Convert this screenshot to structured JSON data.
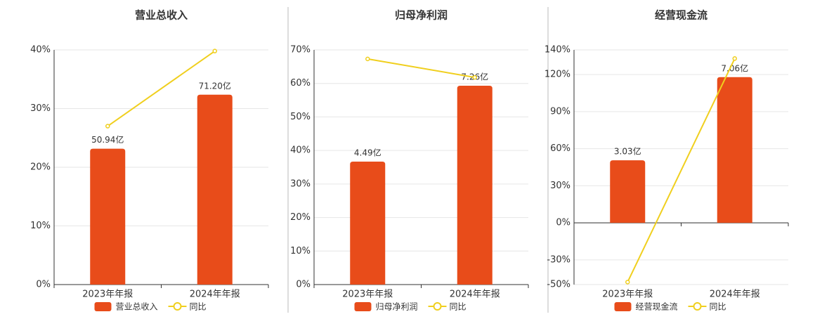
{
  "chart_data": [
    {
      "type": "bar-line",
      "title": "营业总收入",
      "categories": [
        "2023年年报",
        "2024年年报"
      ],
      "series": [
        {
          "name": "营业总收入",
          "color": "#e84c1a",
          "axis": "y2",
          "values": [
            50.94,
            71.2
          ],
          "value_labels": [
            "50.94亿",
            "71.20亿"
          ]
        },
        {
          "name": "同比",
          "color": "#f0cf1e",
          "values": [
            27,
            39.8
          ]
        }
      ],
      "ylim": [
        0,
        40
      ],
      "yticks": [
        {
          "value": 0,
          "label": "0%"
        },
        {
          "value": 10,
          "label": "10%"
        },
        {
          "value": 20,
          "label": "20%"
        },
        {
          "value": 30,
          "label": "30%"
        },
        {
          "value": 40,
          "label": "40%"
        }
      ],
      "y2lim": [
        0,
        88
      ],
      "grid": true
    },
    {
      "type": "bar-line",
      "title": "归母净利润",
      "categories": [
        "2023年年报",
        "2024年年报"
      ],
      "series": [
        {
          "name": "归母净利润",
          "color": "#e84c1a",
          "axis": "y2",
          "values": [
            4.49,
            7.26
          ],
          "value_labels": [
            "4.49亿",
            "7.26亿"
          ]
        },
        {
          "name": "同比",
          "color": "#f0cf1e",
          "values": [
            67.3,
            61.8
          ]
        }
      ],
      "ylim": [
        0,
        70
      ],
      "yticks": [
        {
          "value": 0,
          "label": "0%"
        },
        {
          "value": 10,
          "label": "10%"
        },
        {
          "value": 20,
          "label": "20%"
        },
        {
          "value": 30,
          "label": "30%"
        },
        {
          "value": 40,
          "label": "40%"
        },
        {
          "value": 50,
          "label": "50%"
        },
        {
          "value": 60,
          "label": "60%"
        },
        {
          "value": 70,
          "label": "70%"
        }
      ],
      "y2lim": [
        0,
        8.57
      ],
      "grid": true
    },
    {
      "type": "bar-line",
      "title": "经营现金流",
      "categories": [
        "2023年年报",
        "2024年年报"
      ],
      "series": [
        {
          "name": "经营现金流",
          "color": "#e84c1a",
          "axis": "y2",
          "values": [
            3.03,
            7.06
          ],
          "value_labels": [
            "3.03亿",
            "7.06亿"
          ]
        },
        {
          "name": "同比",
          "color": "#f0cf1e",
          "values": [
            -48,
            133
          ]
        }
      ],
      "ylim": [
        -50,
        140
      ],
      "yticks": [
        {
          "value": -50,
          "label": "-50%"
        },
        {
          "value": -30,
          "label": "-30%"
        },
        {
          "value": 0,
          "label": "0%"
        },
        {
          "value": 30,
          "label": "30%"
        },
        {
          "value": 60,
          "label": "60%"
        },
        {
          "value": 90,
          "label": "90%"
        },
        {
          "value": 120,
          "label": "120%"
        },
        {
          "value": 140,
          "label": "140%"
        }
      ],
      "y2lim": [
        -2.99,
        8.38
      ],
      "grid": true
    }
  ]
}
